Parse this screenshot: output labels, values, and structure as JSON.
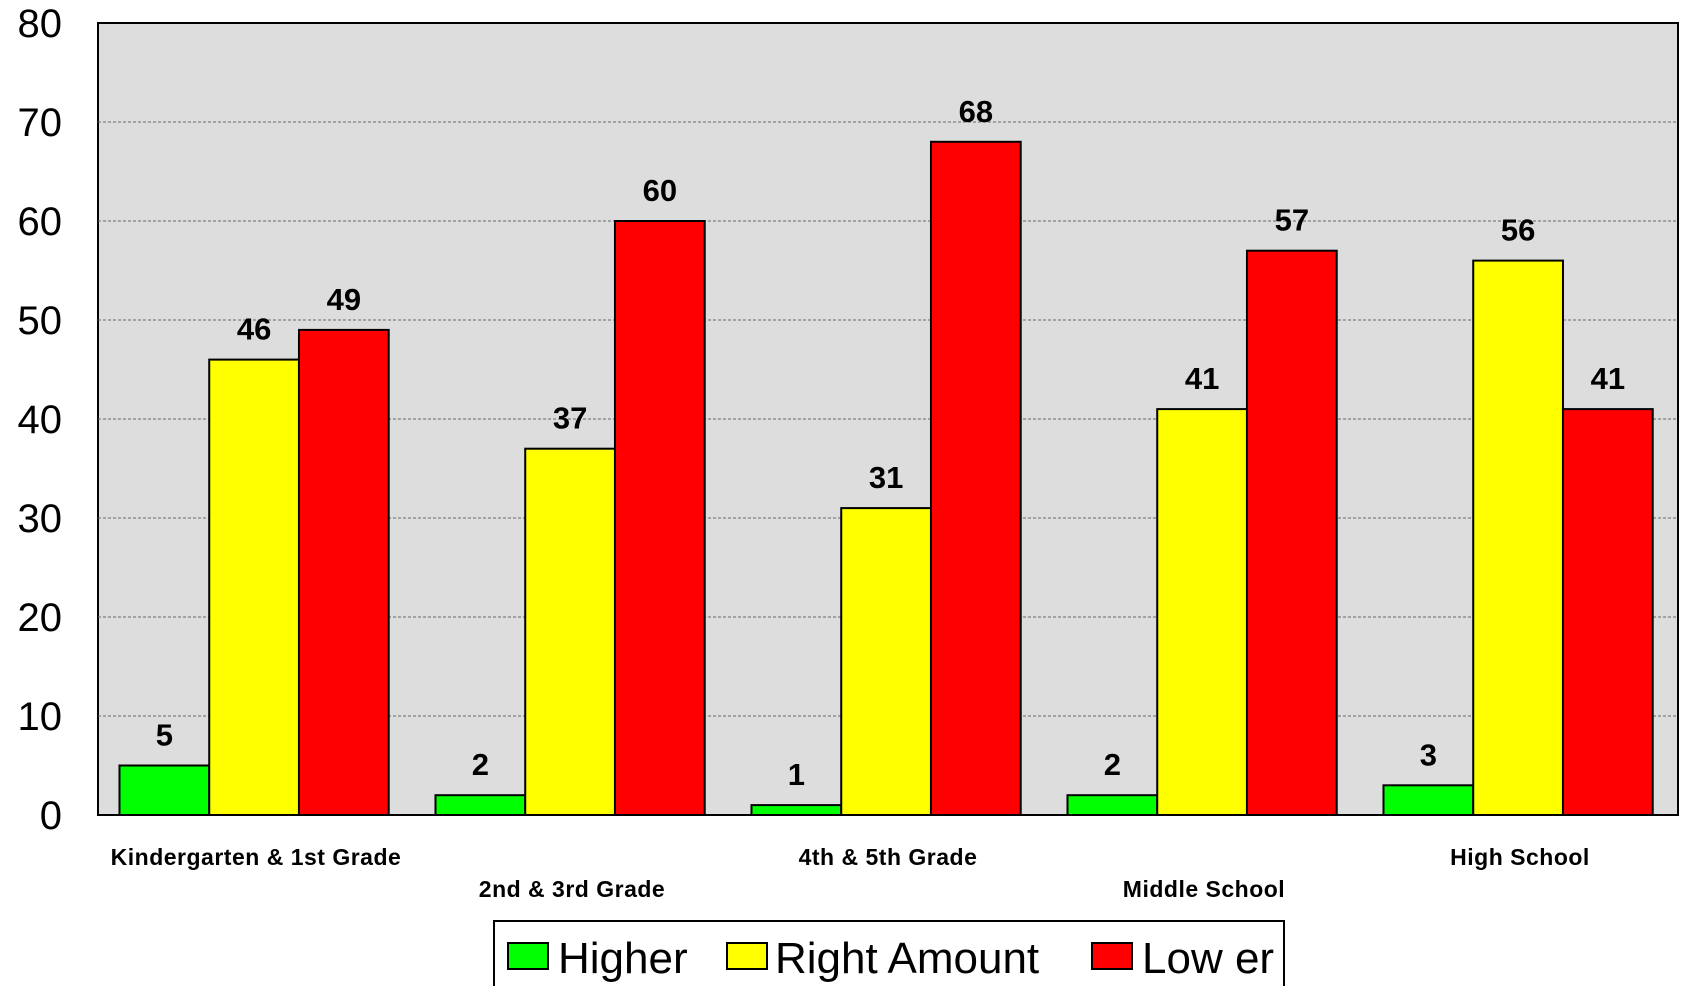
{
  "chart_data": {
    "type": "bar",
    "title": "",
    "xlabel": "",
    "ylabel": "",
    "ylim": [
      0,
      80
    ],
    "yticks": [
      0,
      10,
      20,
      30,
      40,
      50,
      60,
      70,
      80
    ],
    "grid": true,
    "legend_position": "bottom",
    "categories": [
      "Kindergarten & 1st Grade",
      "2nd & 3rd Grade",
      "4th & 5th Grade",
      "Middle School",
      "High School"
    ],
    "series": [
      {
        "name": "Higher",
        "color": "#00ff00",
        "values": [
          5,
          2,
          1,
          2,
          3
        ]
      },
      {
        "name": "Right Amount",
        "color": "#ffff00",
        "values": [
          46,
          37,
          31,
          41,
          56
        ]
      },
      {
        "name": "Low er",
        "color": "#ff0000",
        "values": [
          49,
          60,
          68,
          57,
          41
        ]
      }
    ],
    "plot_background": "#dddddd"
  }
}
